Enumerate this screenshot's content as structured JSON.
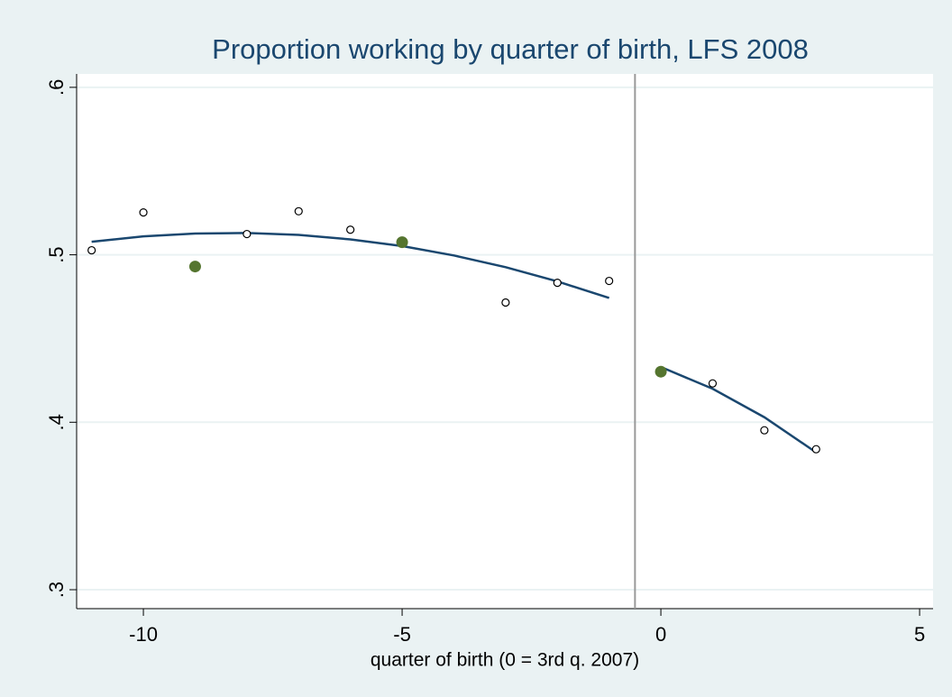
{
  "chart_data": {
    "type": "scatter",
    "title": "Proportion working by quarter of birth, LFS 2008",
    "xlabel": "quarter of birth (0 = 3rd q. 2007)",
    "xlim": [
      -11.29,
      5.26
    ],
    "ylim": [
      0.2887,
      0.608
    ],
    "xticks": [
      -10,
      -5,
      0,
      5
    ],
    "yticks": [
      {
        "value": 0.3,
        "label": ".3"
      },
      {
        "value": 0.4,
        "label": ".4"
      },
      {
        "value": 0.5,
        "label": ".5"
      },
      {
        "value": 0.6,
        "label": ".6"
      }
    ],
    "grid": true,
    "xline": -0.5,
    "series": [
      {
        "type": "scatter",
        "marker": "hollow",
        "color": "#000000",
        "x": [
          -11,
          -10,
          -8,
          -7,
          -6,
          -3,
          -2,
          -1,
          1,
          2,
          3
        ],
        "values": [
          0.5027,
          0.5253,
          0.5124,
          0.526,
          0.515,
          0.4715,
          0.4833,
          0.4844,
          0.4232,
          0.3952,
          0.3839
        ]
      },
      {
        "type": "scatter",
        "marker": "filled",
        "color": "#55752f",
        "x": [
          -9,
          -5,
          0
        ],
        "values": [
          0.493,
          0.5075,
          0.4302
        ]
      },
      {
        "type": "line",
        "color": "#1a476f",
        "x": [
          -11,
          -10,
          -9,
          -8,
          -7,
          -6,
          -5,
          -4,
          -3,
          -2,
          -1
        ],
        "values": [
          0.5078,
          0.511,
          0.5127,
          0.513,
          0.5119,
          0.5092,
          0.5052,
          0.4996,
          0.4926,
          0.4841,
          0.4742
        ]
      },
      {
        "type": "line",
        "color": "#1a476f",
        "x": [
          0,
          1,
          2,
          3
        ],
        "values": [
          0.433,
          0.42,
          0.403,
          0.382
        ]
      }
    ]
  }
}
